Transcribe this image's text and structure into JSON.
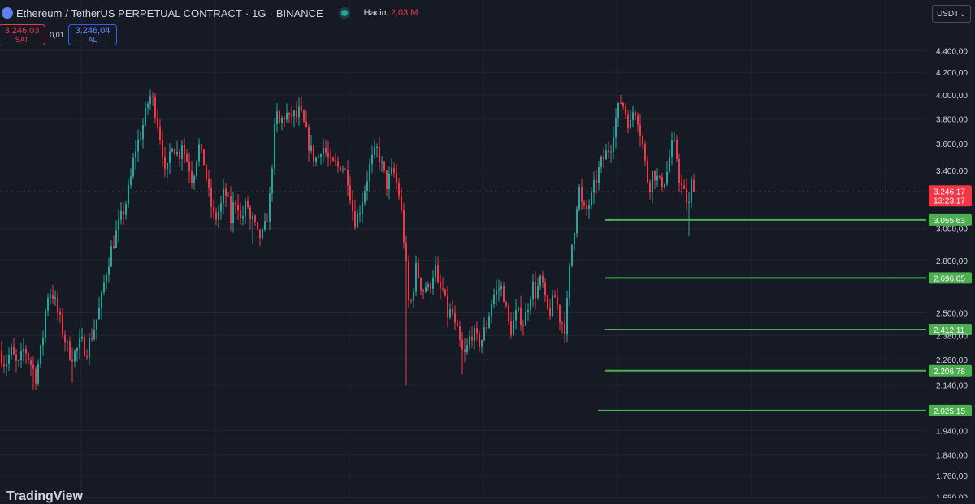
{
  "header": {
    "symbol": "Ethereum",
    "contract": "/ TetherUS PERPETUAL CONTRACT",
    "interval": "1G",
    "exchange": "BINANCE",
    "volume_label": "Hacim",
    "volume_value": "2,03 M",
    "dot_separator": "·"
  },
  "trade": {
    "sell_price": "3.246,03",
    "sell_label": "SAT",
    "spread": "0,01",
    "buy_price": "3.246,04",
    "buy_label": "AL"
  },
  "currency": {
    "label": "USDT",
    "chevron": "⌄"
  },
  "watermark": "TradingView",
  "colors": {
    "background": "#161a25",
    "up": "#26a69a",
    "down": "#f23645",
    "level_line": "#4caf50",
    "grid": "#232632",
    "axis_text": "#d1d4dc"
  },
  "chart_data": {
    "type": "candlestick",
    "y_axis_scale": "log",
    "y_ticks": [
      {
        "value": 4400,
        "label": "4.400,00"
      },
      {
        "value": 4200,
        "label": "4.200,00"
      },
      {
        "value": 4000,
        "label": "4.000,00"
      },
      {
        "value": 3800,
        "label": "3.800,00"
      },
      {
        "value": 3600,
        "label": "3.600,00"
      },
      {
        "value": 3400,
        "label": "3.400,00"
      },
      {
        "value": 3000,
        "label": "3.000,00"
      },
      {
        "value": 2800,
        "label": "2.800,00"
      },
      {
        "value": 2500,
        "label": "2.500,00"
      },
      {
        "value": 2380,
        "label": "2.380,00"
      },
      {
        "value": 2260,
        "label": "2.260,00"
      },
      {
        "value": 2140,
        "label": "2.140,00"
      },
      {
        "value": 1940,
        "label": "1.940,00"
      },
      {
        "value": 1840,
        "label": "1.840,00"
      },
      {
        "value": 1760,
        "label": "1.760,00"
      },
      {
        "value": 1680,
        "label": "1.680,00"
      }
    ],
    "last_price": {
      "value": 3246.17,
      "label": "3.246,17",
      "countdown": "13:23:17"
    },
    "levels": [
      {
        "value": 3055.63,
        "label": "3.055,63"
      },
      {
        "value": 2696.05,
        "label": "2.696,05"
      },
      {
        "value": 2412.11,
        "label": "2.412,11"
      },
      {
        "value": 2206.78,
        "label": "2.206,78"
      },
      {
        "value": 2025.15,
        "label": "2.025,15"
      }
    ],
    "anchors": [
      [
        0,
        2300
      ],
      [
        6,
        2240
      ],
      [
        14,
        2300
      ],
      [
        22,
        2220
      ],
      [
        30,
        2320
      ],
      [
        38,
        2240
      ],
      [
        44,
        2180
      ],
      [
        52,
        2340
      ],
      [
        58,
        2600
      ],
      [
        64,
        2620
      ],
      [
        70,
        2520
      ],
      [
        76,
        2420
      ],
      [
        82,
        2330
      ],
      [
        88,
        2280
      ],
      [
        94,
        2300
      ],
      [
        100,
        2350
      ],
      [
        106,
        2300
      ],
      [
        112,
        2370
      ],
      [
        118,
        2450
      ],
      [
        124,
        2550
      ],
      [
        130,
        2720
      ],
      [
        136,
        2850
      ],
      [
        142,
        2950
      ],
      [
        148,
        3050
      ],
      [
        154,
        3150
      ],
      [
        160,
        3300
      ],
      [
        166,
        3550
      ],
      [
        172,
        3650
      ],
      [
        178,
        3800
      ],
      [
        184,
        4000
      ],
      [
        188,
        3950
      ],
      [
        192,
        3850
      ],
      [
        196,
        3700
      ],
      [
        200,
        3550
      ],
      [
        204,
        3300
      ],
      [
        208,
        3500
      ],
      [
        212,
        3620
      ],
      [
        216,
        3550
      ],
      [
        220,
        3500
      ],
      [
        224,
        3620
      ],
      [
        228,
        3500
      ],
      [
        232,
        3450
      ],
      [
        236,
        3350
      ],
      [
        240,
        3420
      ],
      [
        244,
        3600
      ],
      [
        248,
        3500
      ],
      [
        252,
        3450
      ],
      [
        256,
        3250
      ],
      [
        260,
        3150
      ],
      [
        264,
        3050
      ],
      [
        268,
        3100
      ],
      [
        272,
        3150
      ],
      [
        276,
        3250
      ],
      [
        280,
        3200
      ],
      [
        284,
        3050
      ],
      [
        288,
        3180
      ],
      [
        292,
        3200
      ],
      [
        296,
        3050
      ],
      [
        300,
        3100
      ],
      [
        304,
        3180
      ],
      [
        308,
        3050
      ],
      [
        312,
        3050
      ],
      [
        316,
        2950
      ],
      [
        320,
        2950
      ],
      [
        324,
        2950
      ],
      [
        328,
        3050
      ],
      [
        332,
        3200
      ],
      [
        336,
        3550
      ],
      [
        340,
        3850
      ],
      [
        344,
        3750
      ],
      [
        348,
        3800
      ],
      [
        352,
        3850
      ],
      [
        356,
        3780
      ],
      [
        360,
        3850
      ],
      [
        364,
        3800
      ],
      [
        368,
        3850
      ],
      [
        372,
        3800
      ],
      [
        376,
        3700
      ],
      [
        380,
        3600
      ],
      [
        384,
        3520
      ],
      [
        388,
        3480
      ],
      [
        392,
        3500
      ],
      [
        396,
        3600
      ],
      [
        400,
        3550
      ],
      [
        404,
        3480
      ],
      [
        408,
        3420
      ],
      [
        412,
        3450
      ],
      [
        416,
        3420
      ],
      [
        420,
        3450
      ],
      [
        424,
        3400
      ],
      [
        428,
        3350
      ],
      [
        432,
        3200
      ],
      [
        436,
        3050
      ],
      [
        440,
        3080
      ],
      [
        444,
        3150
      ],
      [
        448,
        3250
      ],
      [
        452,
        3350
      ],
      [
        456,
        3450
      ],
      [
        460,
        3500
      ],
      [
        464,
        3550
      ],
      [
        468,
        3480
      ],
      [
        472,
        3380
      ],
      [
        476,
        3300
      ],
      [
        480,
        3350
      ],
      [
        484,
        3400
      ],
      [
        488,
        3300
      ],
      [
        492,
        3200
      ],
      [
        496,
        3000
      ],
      [
        500,
        2750
      ],
      [
        504,
        2500
      ],
      [
        508,
        2620
      ],
      [
        512,
        2750
      ],
      [
        516,
        2700
      ],
      [
        520,
        2620
      ],
      [
        524,
        2650
      ],
      [
        528,
        2620
      ],
      [
        532,
        2720
      ],
      [
        536,
        2750
      ],
      [
        540,
        2600
      ],
      [
        544,
        2650
      ],
      [
        548,
        2550
      ],
      [
        552,
        2480
      ],
      [
        556,
        2520
      ],
      [
        560,
        2420
      ],
      [
        564,
        2380
      ],
      [
        568,
        2300
      ],
      [
        572,
        2280
      ],
      [
        576,
        2330
      ],
      [
        580,
        2400
      ],
      [
        584,
        2380
      ],
      [
        588,
        2350
      ],
      [
        592,
        2350
      ],
      [
        596,
        2400
      ],
      [
        600,
        2450
      ],
      [
        604,
        2550
      ],
      [
        608,
        2600
      ],
      [
        612,
        2620
      ],
      [
        616,
        2650
      ],
      [
        620,
        2600
      ],
      [
        624,
        2480
      ],
      [
        628,
        2400
      ],
      [
        632,
        2450
      ],
      [
        636,
        2500
      ],
      [
        640,
        2480
      ],
      [
        644,
        2450
      ],
      [
        648,
        2500
      ],
      [
        652,
        2600
      ],
      [
        656,
        2650
      ],
      [
        660,
        2600
      ],
      [
        664,
        2680
      ],
      [
        668,
        2650
      ],
      [
        672,
        2520
      ],
      [
        676,
        2500
      ],
      [
        680,
        2550
      ],
      [
        684,
        2600
      ],
      [
        688,
        2480
      ],
      [
        692,
        2450
      ],
      [
        696,
        2420
      ],
      [
        700,
        2680
      ],
      [
        704,
        2900
      ],
      [
        708,
        3050
      ],
      [
        712,
        3300
      ],
      [
        716,
        3150
      ],
      [
        720,
        3100
      ],
      [
        724,
        3150
      ],
      [
        728,
        3200
      ],
      [
        732,
        3300
      ],
      [
        736,
        3380
      ],
      [
        740,
        3450
      ],
      [
        744,
        3500
      ],
      [
        748,
        3550
      ],
      [
        752,
        3600
      ],
      [
        756,
        3750
      ],
      [
        760,
        3850
      ],
      [
        764,
        3950
      ],
      [
        768,
        3900
      ],
      [
        772,
        3800
      ],
      [
        776,
        3750
      ],
      [
        780,
        3900
      ],
      [
        784,
        3850
      ],
      [
        788,
        3700
      ],
      [
        792,
        3550
      ],
      [
        796,
        3350
      ],
      [
        800,
        3300
      ],
      [
        804,
        3400
      ],
      [
        808,
        3350
      ],
      [
        812,
        3300
      ],
      [
        816,
        3320
      ],
      [
        820,
        3350
      ],
      [
        824,
        3500
      ],
      [
        828,
        3600
      ],
      [
        832,
        3550
      ],
      [
        836,
        3350
      ],
      [
        840,
        3250
      ],
      [
        844,
        3200
      ],
      [
        848,
        3150
      ],
      [
        852,
        3350
      ],
      [
        856,
        3246
      ]
    ]
  }
}
